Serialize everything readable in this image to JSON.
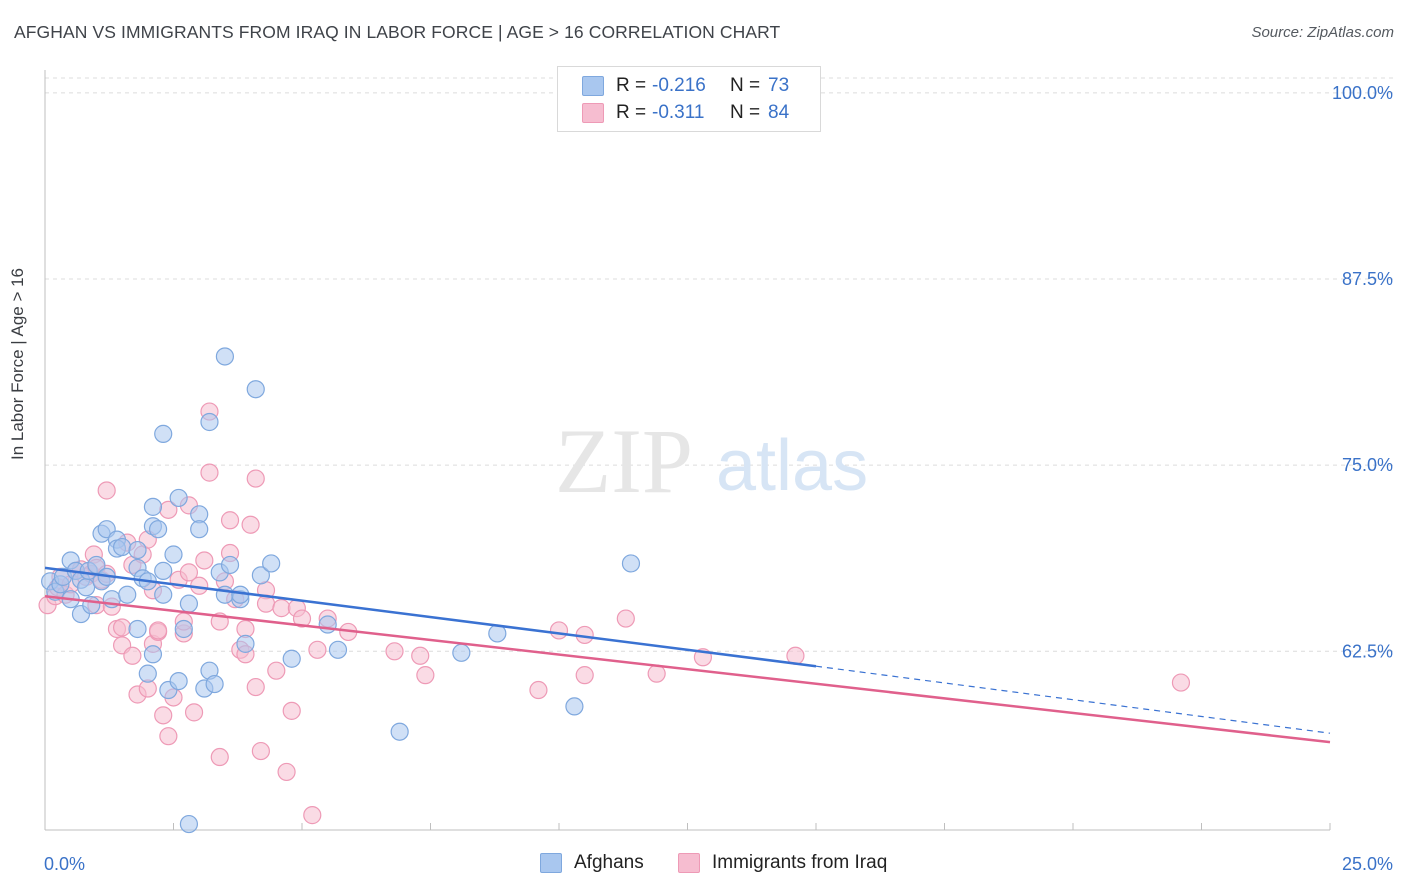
{
  "header": {
    "title": "AFGHAN VS IMMIGRANTS FROM IRAQ IN LABOR FORCE | AGE > 16 CORRELATION CHART",
    "source": "Source: ZipAtlas.com"
  },
  "watermark": {
    "zip": "ZIP",
    "atlas": "atlas"
  },
  "legend_top": [
    {
      "r_label": "R =",
      "r_value": "-0.216",
      "n_label": "N =",
      "n_value": "73"
    },
    {
      "r_label": "R =",
      "r_value": "-0.311",
      "n_label": "N =",
      "n_value": "84"
    }
  ],
  "legend_bottom": [
    {
      "label": "Afghans"
    },
    {
      "label": "Immigrants from Iraq"
    }
  ],
  "colors": {
    "afghans_fill": "#a9c7ef",
    "afghans_stroke": "#7fa8de",
    "afghans_line": "#3a72d2",
    "iraq_fill": "#f6bdd0",
    "iraq_stroke": "#ee9ab6",
    "iraq_line": "#e0608c",
    "tick_label": "#3a72c8",
    "grid": "#dcdcdc"
  },
  "chart_data": {
    "type": "scatter",
    "title": "AFGHAN VS IMMIGRANTS FROM IRAQ IN LABOR FORCE | AGE > 16 CORRELATION CHART",
    "xlabel": "",
    "ylabel": "In Labor Force | Age > 16",
    "xlim": [
      0,
      25
    ],
    "ylim": [
      50.5,
      101
    ],
    "x_tick_labels": [
      "0.0%",
      "25.0%"
    ],
    "y_ticks": [
      62.5,
      75.0,
      87.5,
      100.0
    ],
    "y_tick_labels": [
      "62.5%",
      "75.0%",
      "87.5%",
      "100.0%"
    ],
    "grid": true,
    "legend_position": "top-center",
    "series": [
      {
        "name": "Afghans",
        "r": -0.216,
        "n": 73,
        "trend": {
          "x0": 0.0,
          "y0": 68.1,
          "x1": 15.0,
          "y1": 61.5,
          "dashed_to_x": 25.0,
          "dashed_to_y": 57.0
        },
        "points": [
          [
            0.1,
            67.2
          ],
          [
            0.2,
            66.5
          ],
          [
            0.3,
            67.0
          ],
          [
            0.35,
            67.5
          ],
          [
            0.5,
            66.0
          ],
          [
            0.5,
            68.6
          ],
          [
            0.6,
            67.9
          ],
          [
            0.7,
            67.3
          ],
          [
            0.7,
            65.0
          ],
          [
            0.8,
            66.8
          ],
          [
            0.85,
            67.9
          ],
          [
            0.9,
            65.6
          ],
          [
            1.0,
            68.3
          ],
          [
            1.1,
            67.2
          ],
          [
            1.1,
            70.4
          ],
          [
            1.2,
            67.5
          ],
          [
            1.2,
            70.7
          ],
          [
            1.3,
            66.0
          ],
          [
            1.4,
            70.0
          ],
          [
            1.4,
            69.4
          ],
          [
            1.5,
            69.5
          ],
          [
            1.6,
            66.3
          ],
          [
            1.8,
            68.1
          ],
          [
            1.8,
            69.3
          ],
          [
            1.8,
            64.0
          ],
          [
            1.9,
            67.4
          ],
          [
            2.0,
            67.2
          ],
          [
            2.0,
            61.0
          ],
          [
            2.1,
            72.2
          ],
          [
            2.1,
            70.9
          ],
          [
            2.1,
            62.3
          ],
          [
            2.2,
            70.7
          ],
          [
            2.3,
            67.9
          ],
          [
            2.3,
            66.3
          ],
          [
            2.3,
            77.1
          ],
          [
            2.4,
            59.9
          ],
          [
            2.5,
            69.0
          ],
          [
            2.6,
            72.8
          ],
          [
            2.6,
            60.5
          ],
          [
            2.7,
            64.0
          ],
          [
            2.8,
            65.7
          ],
          [
            2.8,
            50.9
          ],
          [
            3.0,
            71.7
          ],
          [
            3.0,
            70.7
          ],
          [
            3.1,
            60.0
          ],
          [
            3.2,
            61.2
          ],
          [
            3.2,
            77.9
          ],
          [
            3.3,
            60.3
          ],
          [
            3.4,
            67.8
          ],
          [
            3.5,
            82.3
          ],
          [
            3.5,
            66.3
          ],
          [
            3.6,
            68.3
          ],
          [
            3.8,
            66.0
          ],
          [
            3.8,
            66.3
          ],
          [
            3.9,
            63.0
          ],
          [
            4.1,
            80.1
          ],
          [
            4.2,
            67.6
          ],
          [
            4.4,
            68.4
          ],
          [
            4.8,
            62.0
          ],
          [
            5.5,
            64.3
          ],
          [
            5.7,
            62.6
          ],
          [
            6.9,
            57.1
          ],
          [
            8.1,
            62.4
          ],
          [
            8.8,
            63.7
          ],
          [
            10.3,
            58.8
          ],
          [
            11.4,
            68.4
          ]
        ]
      },
      {
        "name": "Immigrants from Iraq",
        "r": -0.311,
        "n": 84,
        "trend": {
          "x0": 0.0,
          "y0": 66.2,
          "x1": 25.0,
          "y1": 56.4
        },
        "points": [
          [
            0.05,
            65.6
          ],
          [
            0.2,
            66.2
          ],
          [
            0.25,
            66.8
          ],
          [
            0.3,
            67.5
          ],
          [
            0.4,
            66.3
          ],
          [
            0.5,
            67.0
          ],
          [
            0.6,
            67.9
          ],
          [
            0.7,
            68.0
          ],
          [
            0.8,
            67.5
          ],
          [
            0.9,
            67.7
          ],
          [
            0.95,
            69.0
          ],
          [
            1.0,
            68.1
          ],
          [
            1.1,
            67.3
          ],
          [
            1.0,
            65.6
          ],
          [
            1.2,
            67.7
          ],
          [
            1.2,
            73.3
          ],
          [
            1.3,
            65.5
          ],
          [
            1.4,
            64.0
          ],
          [
            1.5,
            64.1
          ],
          [
            1.5,
            62.9
          ],
          [
            1.6,
            69.8
          ],
          [
            1.7,
            62.2
          ],
          [
            1.7,
            68.3
          ],
          [
            1.8,
            59.6
          ],
          [
            1.9,
            69.0
          ],
          [
            2.0,
            70.0
          ],
          [
            2.0,
            60.0
          ],
          [
            2.1,
            66.6
          ],
          [
            2.1,
            63.0
          ],
          [
            2.2,
            63.8
          ],
          [
            2.2,
            63.9
          ],
          [
            2.3,
            58.2
          ],
          [
            2.4,
            56.8
          ],
          [
            2.4,
            72.0
          ],
          [
            2.5,
            59.4
          ],
          [
            2.6,
            67.3
          ],
          [
            2.7,
            63.7
          ],
          [
            2.7,
            64.5
          ],
          [
            2.8,
            67.8
          ],
          [
            2.8,
            72.3
          ],
          [
            2.9,
            58.4
          ],
          [
            3.0,
            66.9
          ],
          [
            3.1,
            68.6
          ],
          [
            3.2,
            78.6
          ],
          [
            3.2,
            74.5
          ],
          [
            3.4,
            55.4
          ],
          [
            3.4,
            64.5
          ],
          [
            3.5,
            67.2
          ],
          [
            3.6,
            69.1
          ],
          [
            3.6,
            71.3
          ],
          [
            3.7,
            66.0
          ],
          [
            3.8,
            62.6
          ],
          [
            3.9,
            62.3
          ],
          [
            3.9,
            64.0
          ],
          [
            4.0,
            71.0
          ],
          [
            4.1,
            74.1
          ],
          [
            4.1,
            60.1
          ],
          [
            4.2,
            55.8
          ],
          [
            4.3,
            66.6
          ],
          [
            4.3,
            65.7
          ],
          [
            4.5,
            61.2
          ],
          [
            4.6,
            65.4
          ],
          [
            4.7,
            54.4
          ],
          [
            4.8,
            58.5
          ],
          [
            4.9,
            65.4
          ],
          [
            5.0,
            64.7
          ],
          [
            5.2,
            51.5
          ],
          [
            5.3,
            62.6
          ],
          [
            5.5,
            64.7
          ],
          [
            5.9,
            63.8
          ],
          [
            6.8,
            62.5
          ],
          [
            7.3,
            62.2
          ],
          [
            7.4,
            60.9
          ],
          [
            9.6,
            59.9
          ],
          [
            10.0,
            63.9
          ],
          [
            10.5,
            60.9
          ],
          [
            10.5,
            63.6
          ],
          [
            11.3,
            64.7
          ],
          [
            11.9,
            61.0
          ],
          [
            12.8,
            62.1
          ],
          [
            14.6,
            62.2
          ],
          [
            22.1,
            60.4
          ]
        ]
      }
    ]
  }
}
